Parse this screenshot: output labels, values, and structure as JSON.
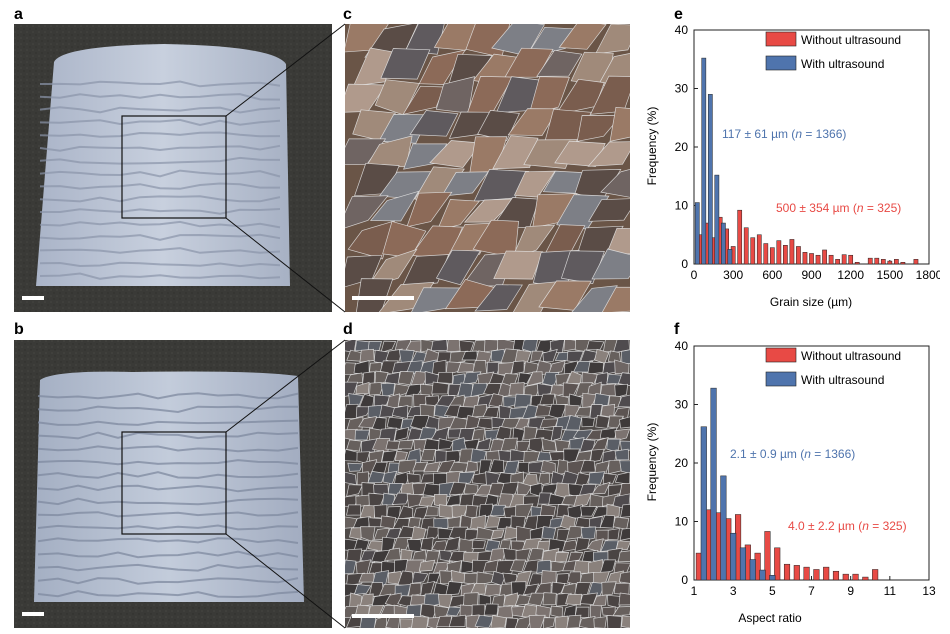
{
  "panels": {
    "a": "a",
    "b": "b",
    "c": "c",
    "d": "d",
    "e": "e",
    "f": "f"
  },
  "colors": {
    "without": "#e84a45",
    "with": "#4f74ad",
    "background_photo": "#3b3b38",
    "deposit": "#b8c2d4"
  },
  "chart_data": [
    {
      "panel": "e",
      "type": "bar",
      "xlabel": "Grain size (µm)",
      "ylabel": "Frequency (%)",
      "xlim": [
        0,
        1800
      ],
      "ylim": [
        0,
        40
      ],
      "xticks": [
        0,
        300,
        600,
        900,
        1200,
        1500,
        1800
      ],
      "yticks": [
        0,
        10,
        20,
        30,
        40
      ],
      "legend_position": "top-right",
      "series": [
        {
          "name": "Without ultrasound",
          "color": "#e84a45",
          "x": [
            50,
            100,
            150,
            200,
            250,
            300,
            350,
            400,
            450,
            500,
            550,
            600,
            650,
            700,
            750,
            800,
            850,
            900,
            950,
            1000,
            1050,
            1100,
            1150,
            1200,
            1250,
            1300,
            1350,
            1400,
            1450,
            1500,
            1550,
            1600,
            1650,
            1700
          ],
          "values": [
            5,
            7,
            4.5,
            8,
            6,
            3,
            9.2,
            6.2,
            4.5,
            5,
            3.5,
            2.8,
            4,
            3.2,
            4.2,
            3,
            2,
            1.8,
            1.5,
            2.4,
            1.5,
            0.8,
            1.6,
            1.5,
            0.3,
            0,
            1,
            1,
            0.8,
            0.5,
            0.8,
            0.3,
            0,
            0.8
          ]
        },
        {
          "name": "With ultrasound",
          "color": "#4f74ad",
          "x": [
            25,
            75,
            125,
            175,
            225,
            275
          ],
          "values": [
            10.5,
            35.2,
            29,
            15.2,
            7,
            2.5
          ]
        }
      ],
      "annotations": [
        {
          "text": "117 ± 61 µm (",
          "italic": "n",
          "rest": " = 1366)",
          "color": "#4f74ad"
        },
        {
          "text": "500 ± 354 µm (",
          "italic": "n",
          "rest": " = 325)",
          "color": "#e84a45"
        }
      ]
    },
    {
      "panel": "f",
      "type": "bar",
      "xlabel": "Aspect ratio",
      "ylabel": "Frequency (%)",
      "xlim": [
        1,
        13
      ],
      "ylim": [
        0,
        40
      ],
      "xticks": [
        1,
        3,
        5,
        7,
        9,
        11,
        13
      ],
      "yticks": [
        0,
        10,
        20,
        30,
        40
      ],
      "legend_position": "top-right",
      "series": [
        {
          "name": "Without ultrasound",
          "color": "#e84a45",
          "x": [
            1.25,
            1.75,
            2.25,
            2.75,
            3.25,
            3.75,
            4.25,
            4.75,
            5.25,
            5.75,
            6.25,
            6.75,
            7.25,
            7.75,
            8.25,
            8.75,
            9.25,
            9.75,
            10.25,
            10.75
          ],
          "values": [
            4.6,
            12,
            11.5,
            10.5,
            11.2,
            6,
            4.6,
            8.3,
            5.5,
            2.7,
            2.5,
            2.2,
            1.8,
            2.2,
            1.5,
            1,
            1,
            0.5,
            1.8,
            0
          ]
        },
        {
          "name": "With ultrasound",
          "color": "#4f74ad",
          "x": [
            1.5,
            2.0,
            2.5,
            3.0,
            3.5,
            4.0,
            4.5,
            5.0
          ],
          "values": [
            26.2,
            32.8,
            17.8,
            8,
            5.5,
            3.5,
            1.7,
            0.8
          ]
        }
      ],
      "annotations": [
        {
          "text": "2.1 ± 0.9 µm (",
          "italic": "n",
          "rest": " = 1366)",
          "color": "#4f74ad"
        },
        {
          "text": "4.0 ± 2.2 µm (",
          "italic": "n",
          "rest": " = 325)",
          "color": "#e84a45"
        }
      ]
    }
  ]
}
